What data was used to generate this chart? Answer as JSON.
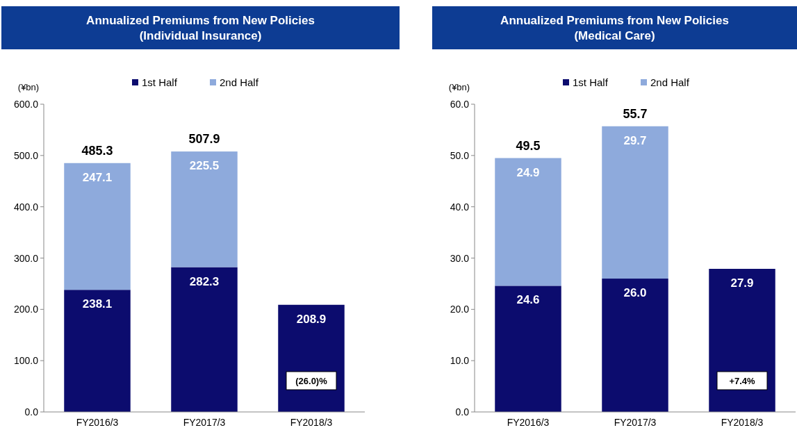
{
  "chart_data": [
    {
      "type": "bar",
      "title": "Annualized Premiums from New Policies\n(Individual Insurance)",
      "ylabel": "(¥bn)",
      "categories": [
        "FY2016/3",
        "FY2017/3",
        "FY2018/3"
      ],
      "stacked": true,
      "legend": "top",
      "grid": false,
      "series": [
        {
          "name": "1st Half",
          "color": "#0c0c6e",
          "values": [
            238.1,
            282.3,
            208.9
          ],
          "value_labels": [
            "238.1",
            "282.3",
            "208.9"
          ]
        },
        {
          "name": "2nd Half",
          "color": "#8eaadc",
          "values": [
            247.1,
            225.5,
            null
          ],
          "value_labels": [
            "247.1",
            "225.5",
            null
          ]
        }
      ],
      "totals": [
        "485.3",
        "507.9",
        null
      ],
      "annotations": [
        "(26.0)%"
      ],
      "ylim": [
        0,
        600
      ],
      "yticks": [
        {
          "value": 0,
          "label": "0.0"
        },
        {
          "value": 100,
          "label": "100.0"
        },
        {
          "value": 200,
          "label": "200.0"
        },
        {
          "value": 300,
          "label": "300.0"
        },
        {
          "value": 400,
          "label": "400.0"
        },
        {
          "value": 500,
          "label": "500.0"
        },
        {
          "value": 600,
          "label": "600.0"
        }
      ]
    },
    {
      "type": "bar",
      "title": "Annualized Premiums from New Policies\n(Medical Care)",
      "ylabel": "(¥bn)",
      "categories": [
        "FY2016/3",
        "FY2017/3",
        "FY2018/3"
      ],
      "stacked": true,
      "legend": "top",
      "grid": false,
      "series": [
        {
          "name": "1st Half",
          "color": "#0c0c6e",
          "values": [
            24.6,
            26.0,
            27.9
          ],
          "value_labels": [
            "24.6",
            "26.0",
            "27.9"
          ]
        },
        {
          "name": "2nd Half",
          "color": "#8eaadc",
          "values": [
            24.9,
            29.7,
            null
          ],
          "value_labels": [
            "24.9",
            "29.7",
            null
          ]
        }
      ],
      "totals": [
        "49.5",
        "55.7",
        null
      ],
      "annotations": [
        "+7.4%"
      ],
      "ylim": [
        0,
        60
      ],
      "yticks": [
        {
          "value": 0,
          "label": "0.0"
        },
        {
          "value": 10,
          "label": "10.0"
        },
        {
          "value": 20,
          "label": "20.0"
        },
        {
          "value": 30,
          "label": "30.0"
        },
        {
          "value": 40,
          "label": "40.0"
        },
        {
          "value": 50,
          "label": "50.0"
        },
        {
          "value": 60,
          "label": "60.0"
        }
      ]
    }
  ]
}
